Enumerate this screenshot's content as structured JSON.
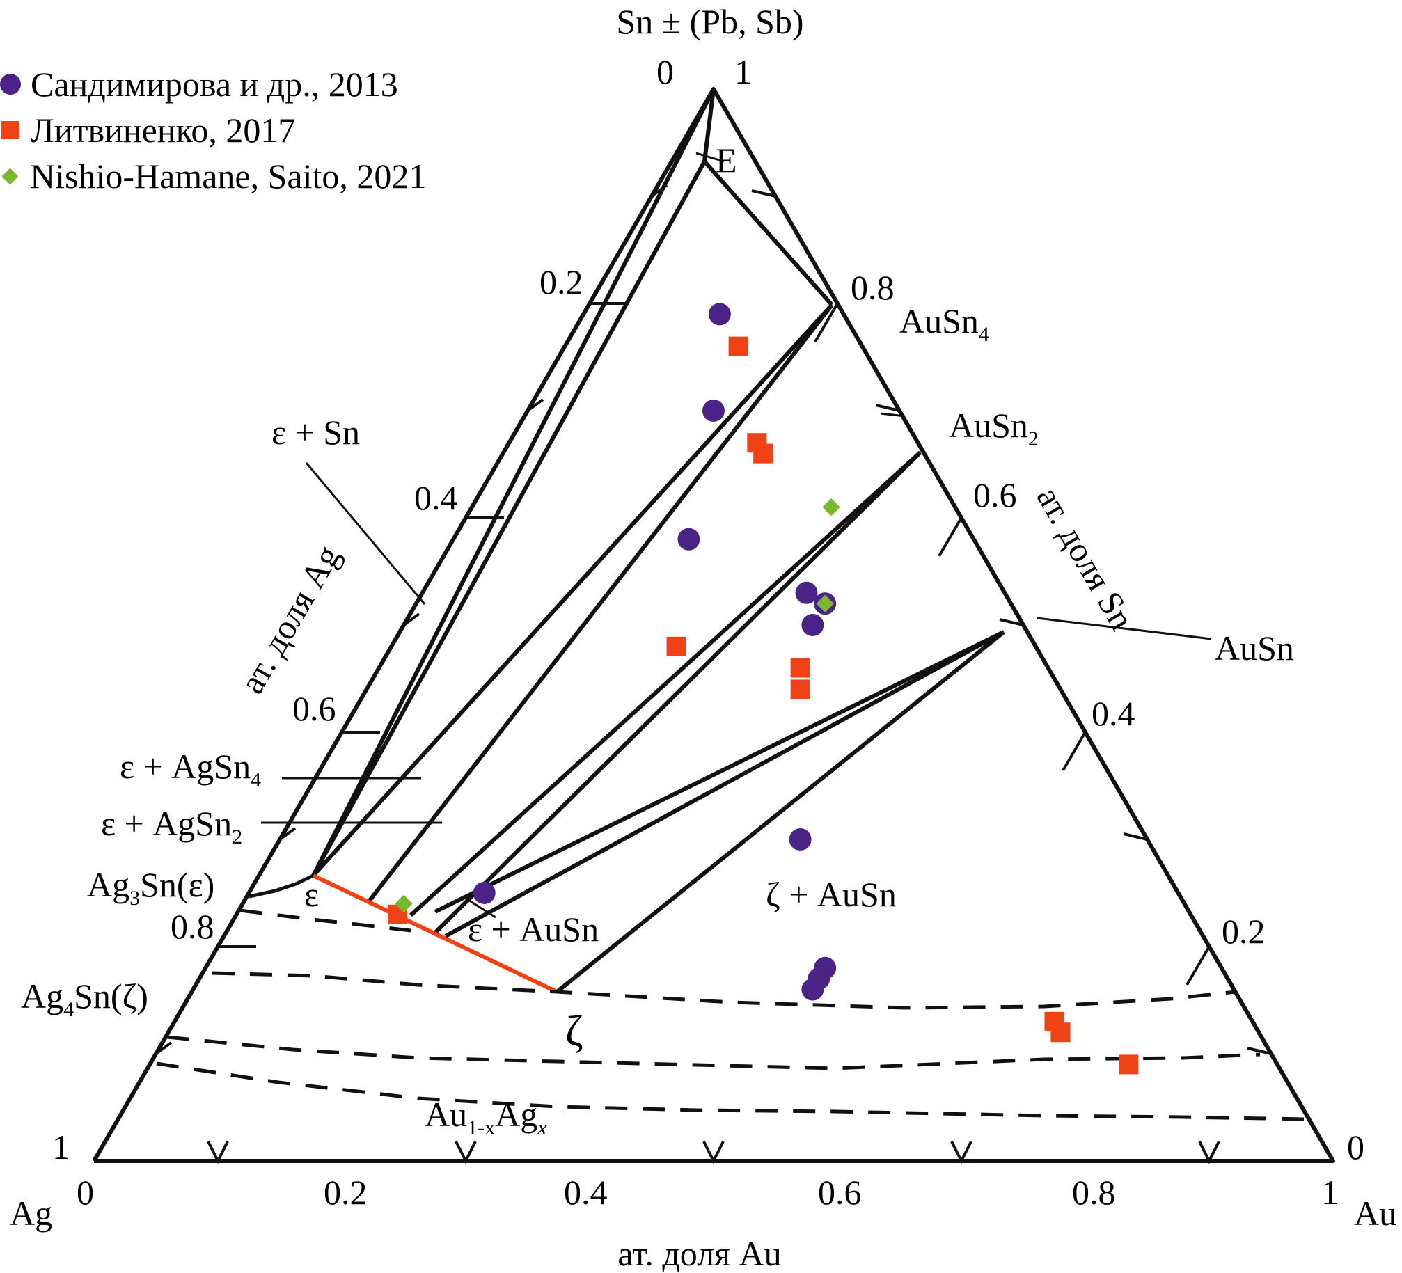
{
  "title": "Sn ± (Pb, Sb)",
  "vertices": {
    "ag": "Ag",
    "au": "Au"
  },
  "axes": {
    "au": {
      "label": "ат. доля Au",
      "ticks": [
        "0",
        "0.2",
        "0.4",
        "0.6",
        "0.8",
        "1"
      ]
    },
    "ag": {
      "label": "ат. доля Ag",
      "ticks": [
        "0",
        "0.2",
        "0.4",
        "0.6",
        "0.8",
        "1"
      ]
    },
    "sn": {
      "label": "ат. доля Sn",
      "ticks": [
        "1",
        "0.8",
        "0.6",
        "0.4",
        "0.2",
        "0"
      ]
    }
  },
  "legend": [
    {
      "marker": "circle",
      "color": "#4b2387",
      "label": "Сандимирова и др., 2013"
    },
    {
      "marker": "square",
      "color": "#ef4316",
      "label": "Литвиненко, 2017"
    },
    {
      "marker": "diamond",
      "color": "#7ab82b",
      "label": "Nishio-Hamane, Saito, 2021"
    }
  ],
  "labels": {
    "e_point": "E",
    "ausn4": "AuSn",
    "ausn4_sub": "4",
    "ausn2": "AuSn",
    "ausn2_sub": "2",
    "ausn": "AuSn",
    "eps_sn": "ε + Sn",
    "eps_agsn4": "ε + AgSn",
    "eps_agsn4_sub": "4",
    "eps_agsn2": "ε + AgSn",
    "eps_agsn2_sub": "2",
    "ag3sn_pre": "Ag",
    "ag3sn_sub": "3",
    "ag3sn_post": "Sn(ε)",
    "ag4sn_pre": "Ag",
    "ag4sn_sub": "4",
    "ag4sn_post": "Sn(ζ)",
    "eps": "ε",
    "eps_ausn": "ε + AuSn",
    "zeta_ausn": "ζ + AuSn",
    "zeta": "ζ",
    "solid_pre": "Au",
    "solid_sub1": "1-x",
    "solid_mid": "Ag",
    "solid_sub2": "x"
  },
  "data_points": {
    "sandimirova": [
      {
        "au": 0.11,
        "sn": 0.79
      },
      {
        "au": 0.15,
        "sn": 0.7
      },
      {
        "au": 0.19,
        "sn": 0.58
      },
      {
        "au": 0.31,
        "sn": 0.53
      },
      {
        "au": 0.33,
        "sn": 0.52
      },
      {
        "au": 0.33,
        "sn": 0.5
      },
      {
        "au": 0.42,
        "sn": 0.3
      },
      {
        "au": 0.19,
        "sn": 0.25
      },
      {
        "au": 0.5,
        "sn": 0.18
      },
      {
        "au": 0.5,
        "sn": 0.17
      },
      {
        "au": 0.5,
        "sn": 0.16
      }
    ],
    "litvinenko": [
      {
        "au": 0.14,
        "sn": 0.76
      },
      {
        "au": 0.2,
        "sn": 0.67
      },
      {
        "au": 0.21,
        "sn": 0.66
      },
      {
        "au": 0.23,
        "sn": 0.48
      },
      {
        "au": 0.34,
        "sn": 0.46
      },
      {
        "au": 0.35,
        "sn": 0.44
      },
      {
        "au": 0.13,
        "sn": 0.23
      },
      {
        "au": 0.71,
        "sn": 0.13
      },
      {
        "au": 0.72,
        "sn": 0.12
      },
      {
        "au": 0.79,
        "sn": 0.09
      }
    ],
    "nishio": [
      {
        "au": 0.29,
        "sn": 0.61
      },
      {
        "au": 0.33,
        "sn": 0.52
      },
      {
        "au": 0.13,
        "sn": 0.24
      }
    ]
  }
}
